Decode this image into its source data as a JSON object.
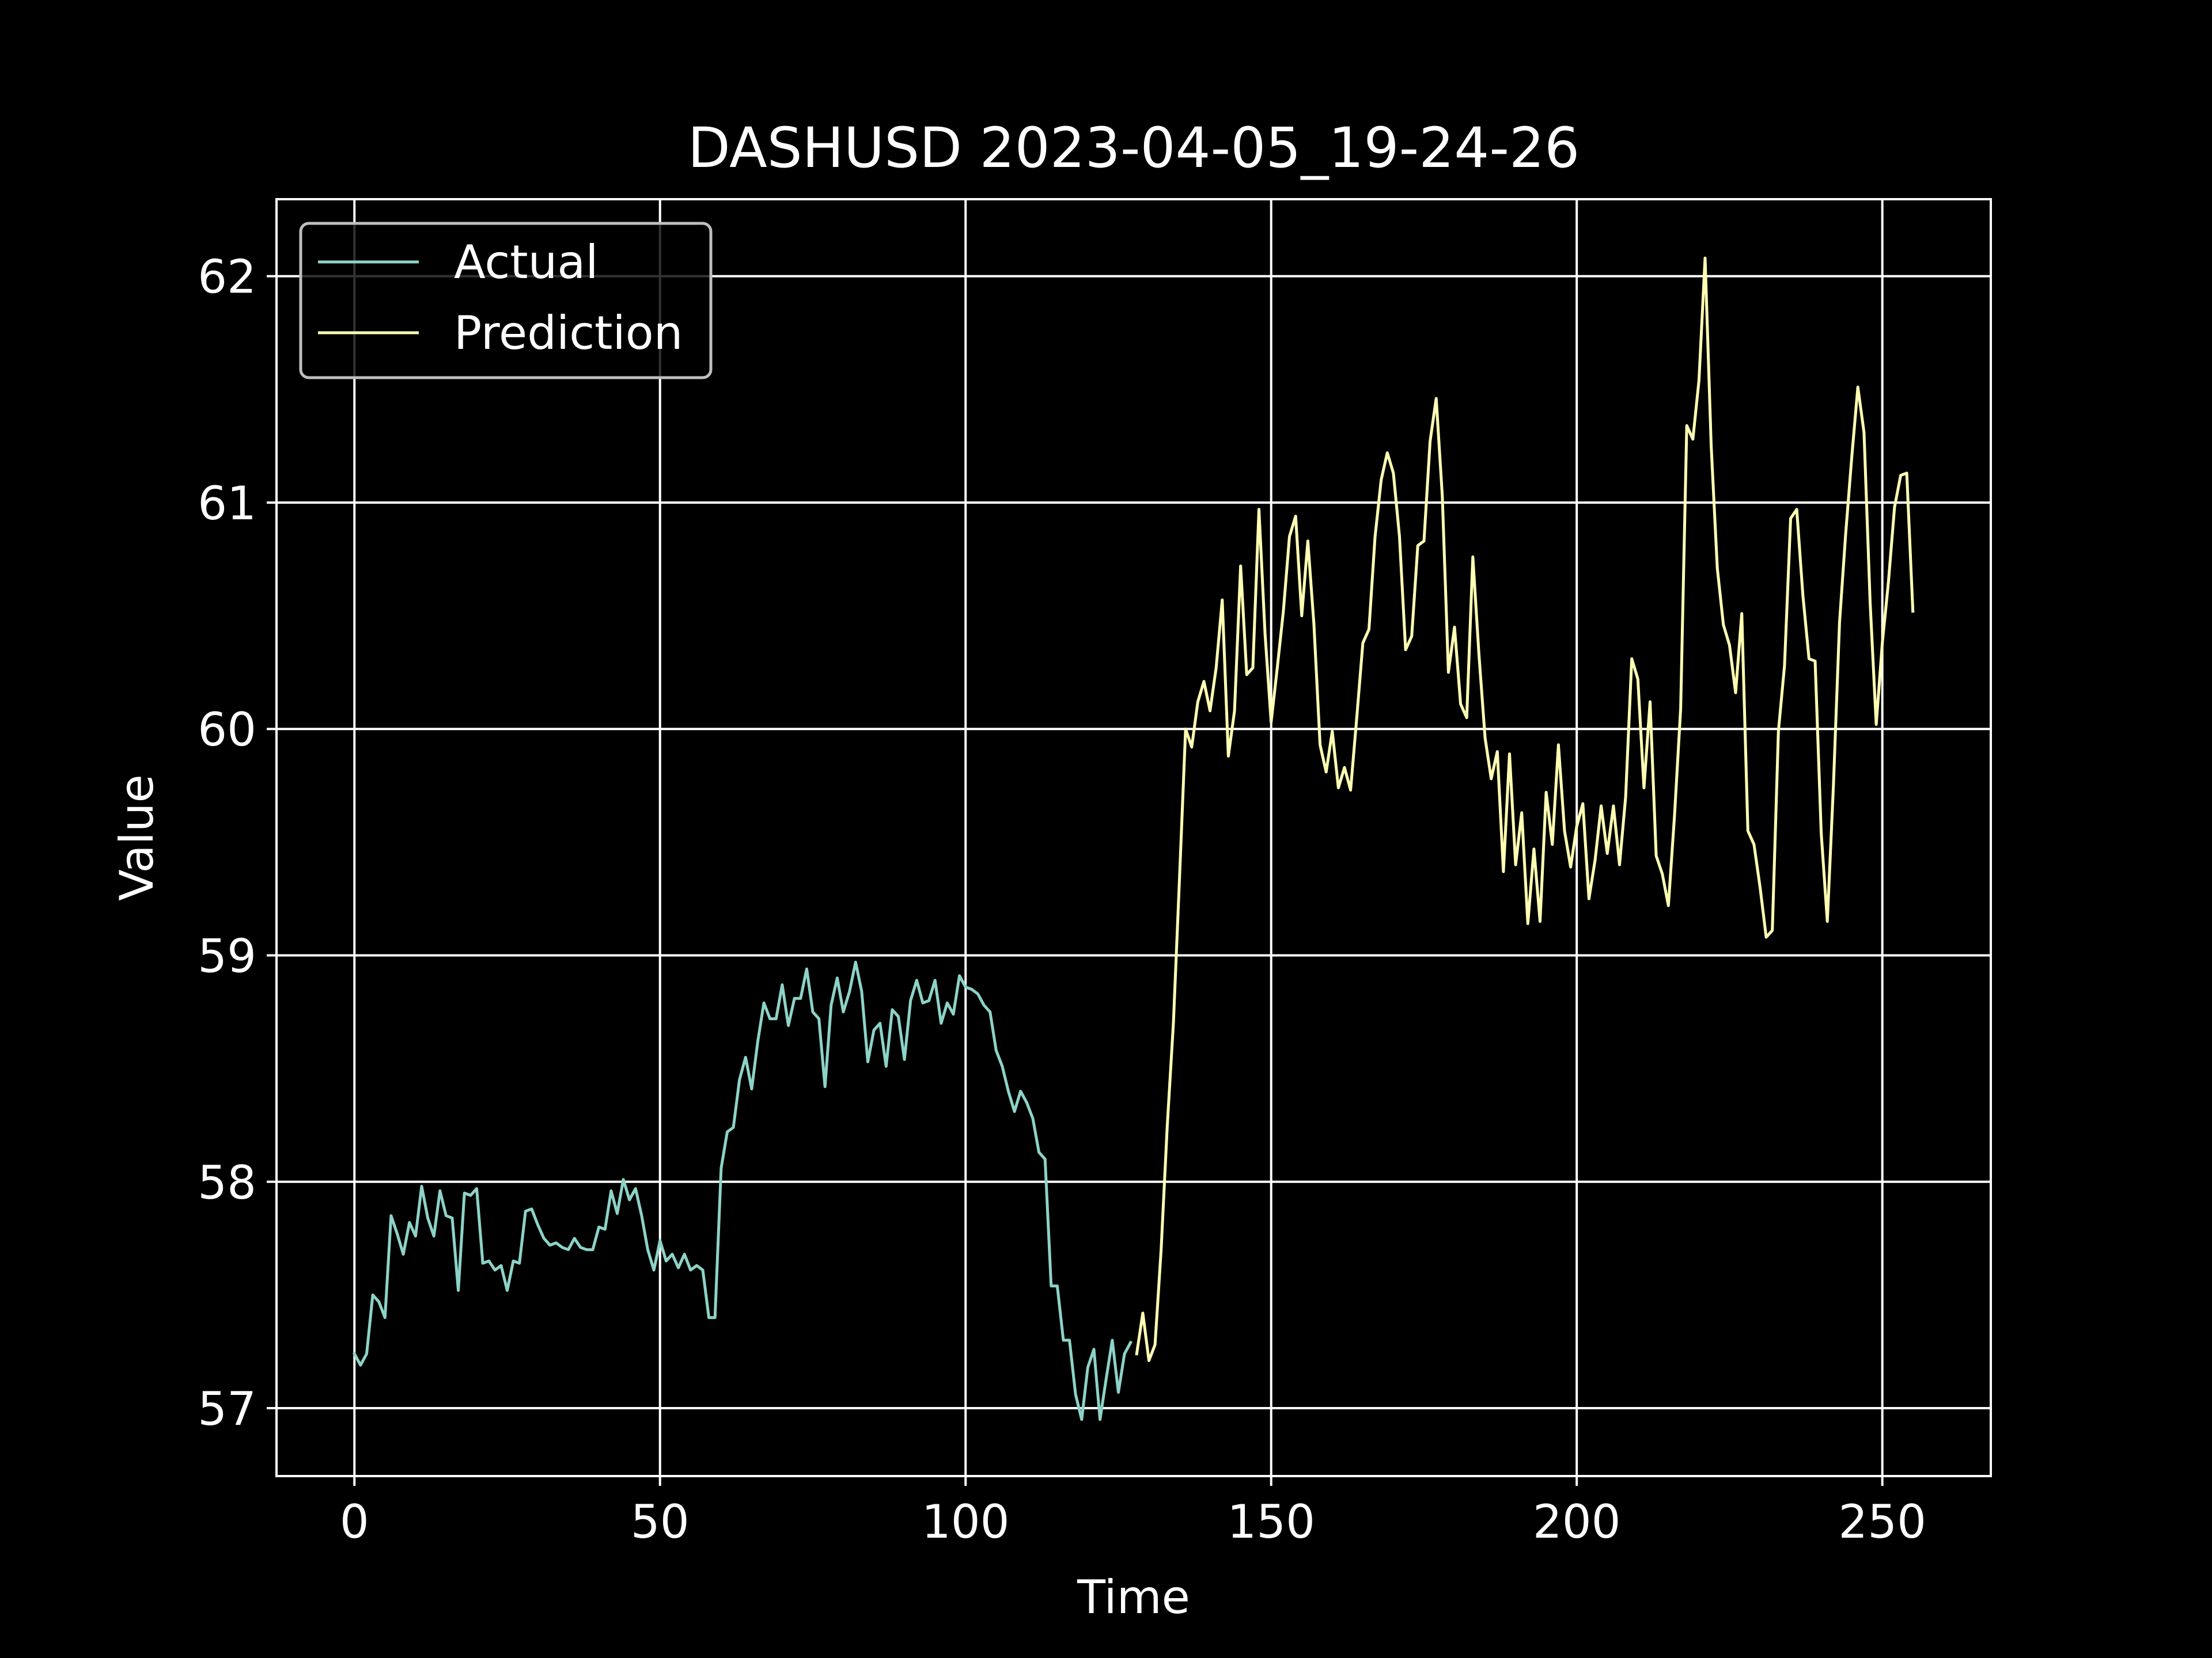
{
  "chart_data": {
    "type": "line",
    "title": "DASHUSD 2023-04-05_19-24-26",
    "xlabel": "Time",
    "ylabel": "Value",
    "xlim": [
      -12.75,
      267.75
    ],
    "ylim": [
      56.7,
      62.34
    ],
    "xticks": [
      0,
      50,
      100,
      150,
      200,
      250
    ],
    "yticks": [
      57,
      58,
      59,
      60,
      61,
      62
    ],
    "grid": true,
    "legend_position": "top-left",
    "background": "#000000",
    "series": [
      {
        "name": "Actual",
        "color": "#8dd3c7",
        "x_start": 0,
        "values": [
          57.24,
          57.19,
          57.24,
          57.5,
          57.47,
          57.4,
          57.85,
          57.77,
          57.68,
          57.82,
          57.76,
          57.98,
          57.84,
          57.76,
          57.96,
          57.85,
          57.84,
          57.52,
          57.95,
          57.94,
          57.97,
          57.64,
          57.65,
          57.61,
          57.63,
          57.52,
          57.65,
          57.64,
          57.87,
          57.88,
          57.81,
          57.75,
          57.72,
          57.73,
          57.71,
          57.7,
          57.75,
          57.71,
          57.7,
          57.7,
          57.8,
          57.79,
          57.96,
          57.86,
          58.01,
          57.92,
          57.97,
          57.85,
          57.7,
          57.61,
          57.74,
          57.65,
          57.68,
          57.62,
          57.68,
          57.61,
          57.63,
          57.61,
          57.4,
          57.4,
          58.06,
          58.22,
          58.24,
          58.45,
          58.55,
          58.41,
          58.62,
          58.79,
          58.72,
          58.72,
          58.87,
          58.69,
          58.81,
          58.81,
          58.94,
          58.75,
          58.72,
          58.42,
          58.78,
          58.9,
          58.75,
          58.84,
          58.97,
          58.84,
          58.53,
          58.67,
          58.7,
          58.51,
          58.76,
          58.73,
          58.54,
          58.8,
          58.89,
          58.79,
          58.8,
          58.89,
          58.7,
          58.79,
          58.74,
          58.91,
          58.86,
          58.85,
          58.83,
          58.78,
          58.75,
          58.58,
          58.51,
          58.4,
          58.31,
          58.4,
          58.35,
          58.28,
          58.13,
          58.1,
          57.54,
          57.54,
          57.3,
          57.3,
          57.06,
          56.95,
          57.18,
          57.26,
          56.95,
          57.13,
          57.3,
          57.07,
          57.24,
          57.29
        ]
      },
      {
        "name": "Prediction",
        "color": "#ffffb3",
        "x_start": 128,
        "values": [
          57.24,
          57.42,
          57.21,
          57.28,
          57.7,
          58.25,
          58.7,
          59.34,
          60.0,
          59.92,
          60.12,
          60.21,
          60.08,
          60.27,
          60.57,
          59.88,
          60.08,
          60.72,
          60.24,
          60.27,
          60.97,
          60.42,
          60.03,
          60.27,
          60.52,
          60.85,
          60.94,
          60.5,
          60.83,
          60.46,
          59.93,
          59.81,
          59.99,
          59.74,
          59.83,
          59.73,
          60.05,
          60.38,
          60.44,
          60.85,
          61.1,
          61.22,
          61.13,
          60.85,
          60.35,
          60.41,
          60.81,
          60.83,
          61.27,
          61.46,
          61.03,
          60.25,
          60.45,
          60.11,
          60.05,
          60.76,
          60.33,
          59.96,
          59.78,
          59.9,
          59.37,
          59.89,
          59.4,
          59.63,
          59.14,
          59.47,
          59.15,
          59.72,
          59.49,
          59.93,
          59.55,
          59.39,
          59.57,
          59.67,
          59.25,
          59.42,
          59.66,
          59.45,
          59.66,
          59.4,
          59.7,
          60.31,
          60.22,
          59.74,
          60.12,
          59.44,
          59.36,
          59.22,
          59.62,
          60.09,
          61.34,
          61.28,
          61.54,
          62.08,
          61.25,
          60.71,
          60.46,
          60.37,
          60.16,
          60.51,
          59.55,
          59.49,
          59.3,
          59.08,
          59.11,
          59.99,
          60.28,
          60.93,
          60.97,
          60.59,
          60.31,
          60.3,
          59.54,
          59.15,
          59.75,
          60.47,
          60.86,
          61.2,
          61.51,
          61.31,
          60.56,
          60.02,
          60.38,
          60.65,
          60.98,
          61.12,
          61.13,
          60.52
        ]
      }
    ]
  }
}
